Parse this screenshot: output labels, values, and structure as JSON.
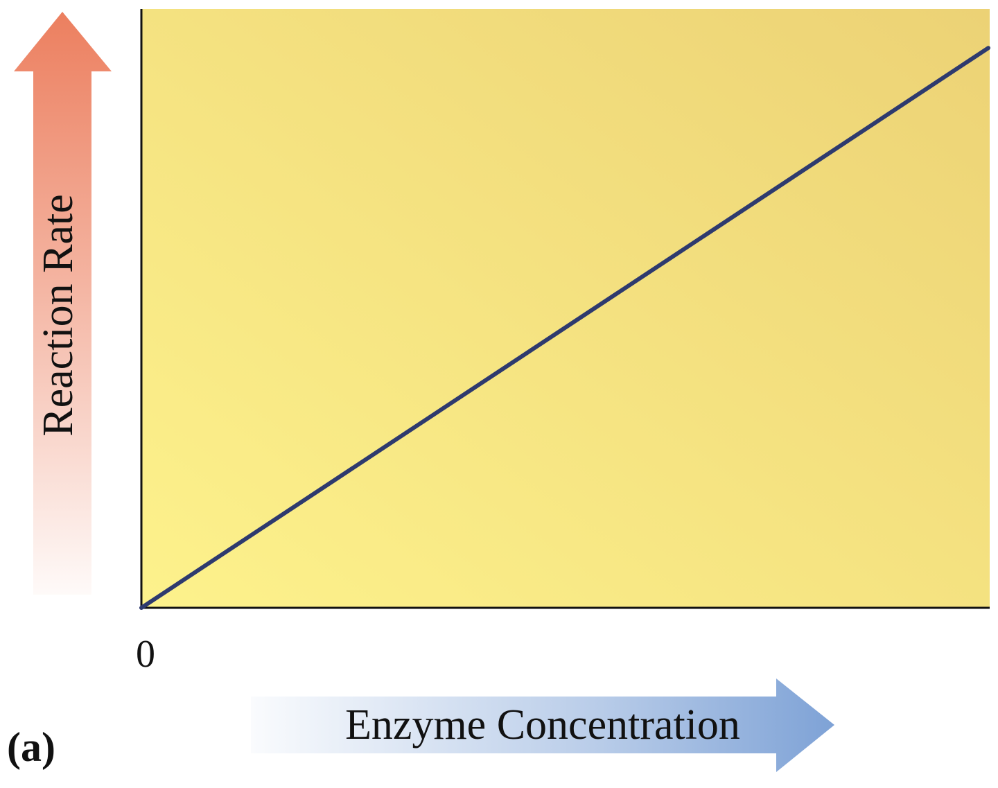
{
  "chart_data": {
    "type": "line",
    "title": "",
    "panel_label": "(a)",
    "xlabel": "Enzyme Concentration",
    "ylabel": "Reaction Rate",
    "x_tick_labels": [
      "0"
    ],
    "xlim": [
      0,
      1
    ],
    "ylim": [
      0,
      1
    ],
    "series": [
      {
        "x": [
          0,
          1
        ],
        "y": [
          0,
          0.935
        ]
      }
    ],
    "grid": false,
    "legend": "none"
  },
  "colors": {
    "plot_bg_light": "#fdf28c",
    "plot_bg_dark": "#ecd275",
    "line": "#2e3a6e",
    "axis": "#111111",
    "y_arrow": "#ec7f5f",
    "x_arrow": "#7ea2d6"
  }
}
